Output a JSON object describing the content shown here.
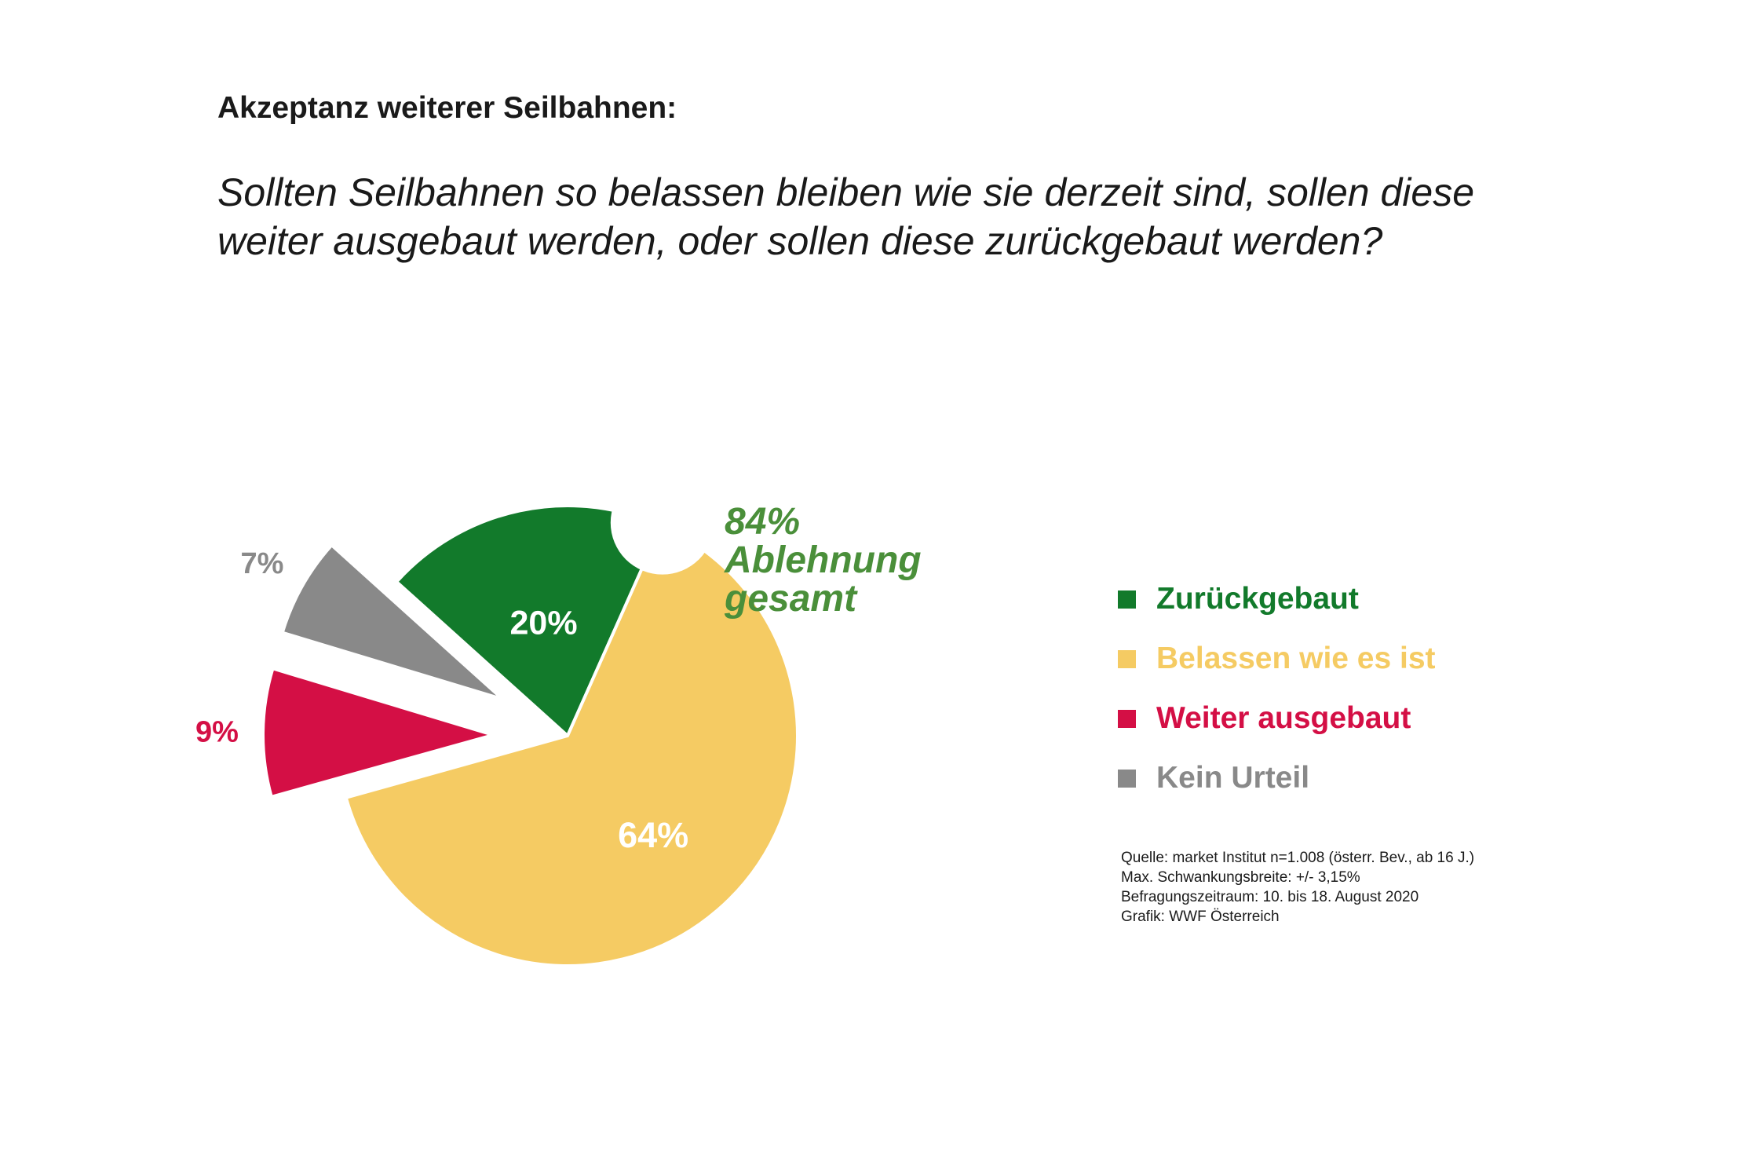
{
  "title": "Akzeptanz weiterer Seilbahnen:",
  "question": {
    "line1": "Sollten Seilbahnen so belassen bleiben wie sie derzeit sind, sollen diese",
    "line2": "weiter ausgebaut werden, oder sollen diese zurückgebaut werden?"
  },
  "callout": {
    "line1": "84%",
    "line2": "Ablehnung",
    "line3": "gesamt"
  },
  "source": {
    "line1": "Quelle: market Institut n=1.008 (österr. Bev., ab 16 J.)",
    "line2": "Max. Schwankungsbreite: +/- 3,15%",
    "line3": "Befragungszeitraum: 10. bis 18. August 2020",
    "line4": "Grafik: WWF Österreich"
  },
  "chart_data": {
    "type": "pie",
    "unit": "%",
    "slices": [
      {
        "name": "Zurückgebaut",
        "value": 20,
        "label": "20%",
        "color": "#127a2b",
        "label_color": "#ffffff",
        "exploded": false
      },
      {
        "name": "Belassen wie es ist",
        "value": 64,
        "label": "64%",
        "color": "#f5cb63",
        "label_color": "#ffffff",
        "exploded": false
      },
      {
        "name": "Weiter ausgebaut",
        "value": 9,
        "label": "9%",
        "color": "#d40f45",
        "label_color": "#d40f45",
        "exploded": true
      },
      {
        "name": "Kein Urteil",
        "value": 7,
        "label": "7%",
        "color": "#898989",
        "label_color": "#898989",
        "exploded": true
      }
    ],
    "legend": [
      {
        "label": "Zurückgebaut",
        "color": "#127a2b"
      },
      {
        "label": "Belassen wie es ist",
        "color": "#f5cb63"
      },
      {
        "label": "Weiter ausgebaut",
        "color": "#d40f45"
      },
      {
        "label": "Kein Urteil",
        "color": "#898989"
      }
    ],
    "legend_position": "right"
  }
}
